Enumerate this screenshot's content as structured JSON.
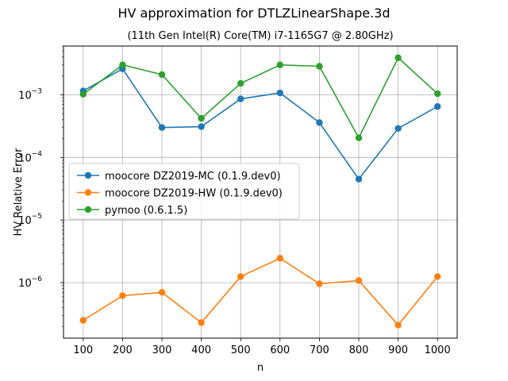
{
  "chart_data": {
    "type": "line",
    "title": "HV approximation for DTLZLinearShape.3d",
    "subtitle": "(11th Gen Intel(R) Core(TM) i7-1165G7 @ 2.80GHz)",
    "xlabel": "n",
    "ylabel": "HV Relative Error",
    "yscale": "log",
    "grid": true,
    "legend_position": "center-left",
    "x": [
      100,
      200,
      300,
      400,
      500,
      600,
      700,
      800,
      900,
      1000
    ],
    "xticks": [
      100,
      200,
      300,
      400,
      500,
      600,
      700,
      800,
      900,
      1000
    ],
    "xlim": [
      50,
      1050
    ],
    "ylim": [
      1.3e-07,
      0.006
    ],
    "yticks": [
      {
        "value": 1e-06,
        "base": "10",
        "exp": "−6"
      },
      {
        "value": 1e-05,
        "base": "10",
        "exp": "−5"
      },
      {
        "value": 0.0001,
        "base": "10",
        "exp": "−4"
      },
      {
        "value": 0.001,
        "base": "10",
        "exp": "−3"
      }
    ],
    "series": [
      {
        "name": "moocore DZ2019-MC (0.1.9.dev0)",
        "color": "#1f77b4",
        "values": [
          0.00115,
          0.0026,
          0.0003,
          0.00031,
          0.00086,
          0.00107,
          0.00036,
          4.5e-05,
          0.00029,
          0.00065
        ]
      },
      {
        "name": "moocore DZ2019-HW (0.1.9.dev0)",
        "color": "#ff7f0e",
        "values": [
          2.5e-07,
          6.2e-07,
          7e-07,
          2.3e-07,
          1.25e-06,
          2.45e-06,
          9.6e-07,
          1.08e-06,
          2.1e-07,
          1.25e-06
        ]
      },
      {
        "name": "pymoo (0.6.1.5)",
        "color": "#2ca02c",
        "values": [
          0.00102,
          0.003,
          0.0021,
          0.00042,
          0.00152,
          0.003,
          0.00285,
          0.000205,
          0.0039,
          0.00104
        ]
      }
    ]
  }
}
